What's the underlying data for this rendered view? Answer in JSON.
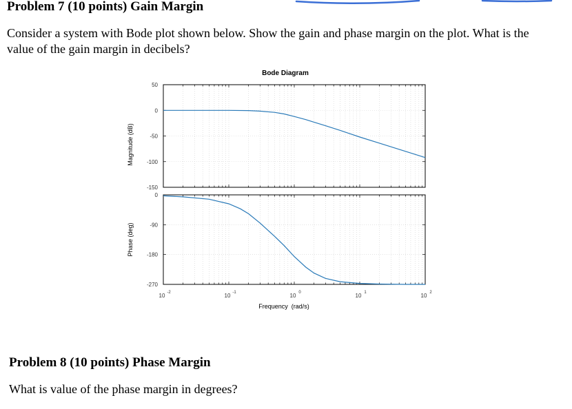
{
  "problem7": {
    "title": "Problem 7 (10 points) Gain Margin",
    "text": "Consider a system with Bode plot shown below. Show the gain and phase margin on the plot. What is the value of the gain margin in decibels?"
  },
  "problem8": {
    "title": "Problem 8 (10 points) Phase Margin",
    "text": "What is value of the phase margin in degrees?"
  },
  "colors": {
    "curve": "#2a7ab8",
    "axis": "#000000",
    "grid": "#d0d0d0",
    "scribble": "#3b6fd6"
  },
  "chart_data": [
    {
      "type": "line",
      "title": "Bode Diagram",
      "xlabel": "",
      "ylabel": "Magnitude (dB)",
      "xscale": "log",
      "xlim": [
        0.01,
        100
      ],
      "ylim": [
        -150,
        50
      ],
      "yticks": [
        "50",
        "0",
        "-50",
        "-100",
        "-150"
      ],
      "grid": true,
      "series": [
        {
          "x": [
            0.01,
            0.02,
            0.05,
            0.1,
            0.2,
            0.3,
            0.5,
            0.7,
            1,
            1.5,
            2,
            3,
            5,
            10,
            20,
            50,
            100
          ],
          "values": [
            0,
            0,
            0,
            -0.1,
            -0.5,
            -1.5,
            -4,
            -7,
            -12,
            -18,
            -23,
            -30,
            -39,
            -52,
            -64,
            -80,
            -92
          ]
        }
      ]
    },
    {
      "type": "line",
      "xlabel": "Frequency  (rad/s)",
      "ylabel": "Phase (deg)",
      "xscale": "log",
      "xlim": [
        0.01,
        100
      ],
      "ylim": [
        -270,
        0
      ],
      "yticks": [
        "0",
        "-90",
        "-180",
        "-270"
      ],
      "xticks": [
        "10",
        "10",
        "10",
        "10",
        "10"
      ],
      "xtick_exponents": [
        "-2",
        "-1",
        "0",
        "1",
        "2"
      ],
      "grid": true,
      "series": [
        {
          "x": [
            0.01,
            0.02,
            0.05,
            0.1,
            0.15,
            0.2,
            0.3,
            0.5,
            0.7,
            1,
            1.5,
            2,
            3,
            5,
            10,
            20,
            50,
            100
          ],
          "values": [
            -3,
            -6,
            -13,
            -27,
            -42,
            -57,
            -85,
            -125,
            -153,
            -186,
            -218,
            -236,
            -252,
            -262,
            -267,
            -269,
            -270,
            -270
          ]
        }
      ]
    }
  ]
}
